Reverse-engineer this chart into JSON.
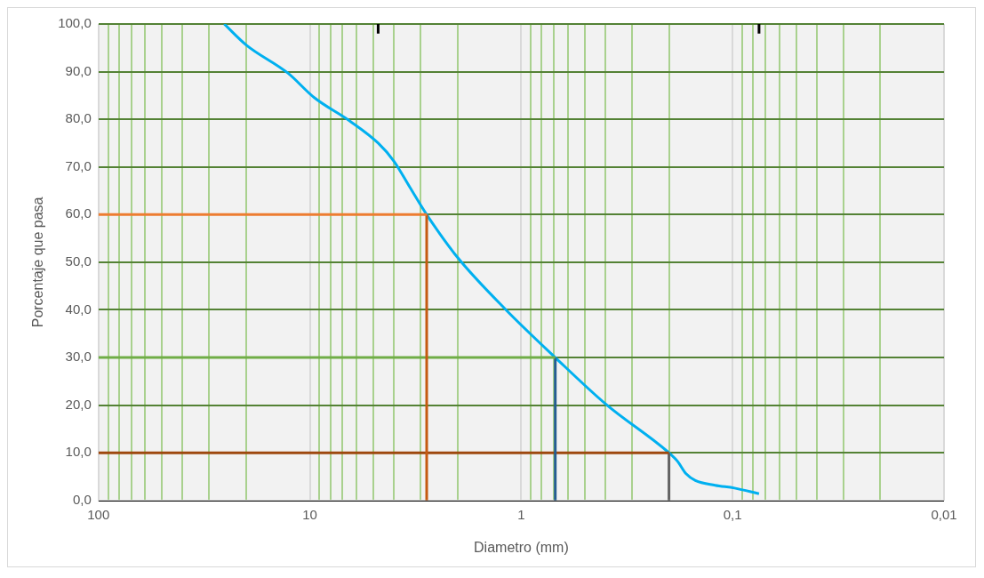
{
  "chart_data": {
    "type": "line",
    "xlabel": "Diametro (mm)",
    "ylabel": "Porcentaje que pasa",
    "xlim": [
      100,
      0.01
    ],
    "ylim": [
      0,
      100
    ],
    "log": "x",
    "grid": true,
    "legend": false,
    "marker": "none",
    "line_style": "solid",
    "xticks": [
      100,
      {
        "value": 90,
        "label": null
      },
      {
        "value": 80,
        "label": null
      },
      {
        "value": 70,
        "label": null
      },
      {
        "value": 60,
        "label": null
      },
      {
        "value": 50,
        "label": null
      },
      {
        "value": 40,
        "label": null
      },
      {
        "value": 30,
        "label": null
      },
      {
        "value": 20,
        "label": null
      },
      10,
      {
        "value": 9,
        "label": null
      },
      {
        "value": 8,
        "label": null
      },
      {
        "value": 7,
        "label": null
      },
      {
        "value": 6,
        "label": null
      },
      {
        "value": 5,
        "label": null
      },
      {
        "value": 4,
        "label": null
      },
      {
        "value": 3,
        "label": null
      },
      {
        "value": 2,
        "label": null
      },
      1,
      {
        "value": 0.9,
        "label": null
      },
      {
        "value": 0.8,
        "label": null
      },
      {
        "value": 0.7,
        "label": null
      },
      {
        "value": 0.6,
        "label": null
      },
      {
        "value": 0.5,
        "label": null
      },
      {
        "value": 0.4,
        "label": null
      },
      {
        "value": 0.3,
        "label": null
      },
      {
        "value": 0.2,
        "label": null
      },
      {
        "value": 0.1,
        "label": "0,1"
      },
      {
        "value": 0.09,
        "label": null
      },
      {
        "value": 0.08,
        "label": null
      },
      {
        "value": 0.07,
        "label": null
      },
      {
        "value": 0.06,
        "label": null
      },
      {
        "value": 0.05,
        "label": null
      },
      {
        "value": 0.04,
        "label": null
      },
      {
        "value": 0.03,
        "label": null
      },
      {
        "value": 0.02,
        "label": null
      },
      {
        "value": 0.01,
        "label": "0,01"
      }
    ],
    "yticks": [
      {
        "value": 0,
        "label": "0,0"
      },
      {
        "value": 10,
        "label": "10,0"
      },
      {
        "value": 20,
        "label": "20,0"
      },
      {
        "value": 30,
        "label": "30,0"
      },
      {
        "value": 40,
        "label": "40,0"
      },
      {
        "value": 50,
        "label": "50,0"
      },
      {
        "value": 60,
        "label": "60,0"
      },
      {
        "value": 70,
        "label": "70,0"
      },
      {
        "value": 80,
        "label": "80,0"
      },
      {
        "value": 90,
        "label": "90,0"
      },
      {
        "value": 100,
        "label": "100,0"
      }
    ],
    "series": [
      {
        "color": "#ed7d31",
        "x": [
          100,
          2.8
        ],
        "values": [
          60,
          60
        ]
      },
      {
        "color": "#c55a11",
        "x": [
          2.8,
          2.8
        ],
        "values": [
          60,
          0
        ]
      },
      {
        "color": "#70ad47",
        "x": [
          100,
          0.69
        ],
        "values": [
          30,
          30
        ]
      },
      {
        "color": "#255e91",
        "x": [
          0.69,
          0.69
        ],
        "values": [
          30,
          0
        ]
      },
      {
        "color": "#9e480e",
        "x": [
          100,
          0.2
        ],
        "values": [
          10,
          10
        ]
      },
      {
        "color": "#636363",
        "x": [
          0.2,
          0.2
        ],
        "values": [
          10,
          0
        ]
      },
      {
        "color": "#000000",
        "x": [
          4.75,
          4.75
        ],
        "values": [
          100,
          98
        ]
      },
      {
        "color": "#000000",
        "x": [
          0.075,
          0.075
        ],
        "values": [
          100,
          98
        ]
      },
      {
        "color": "#00b0f0",
        "x": [
          25.4,
          20,
          12.7,
          9.5,
          6.5,
          4.75,
          4.0,
          3.37,
          2.8,
          2.0,
          1.18,
          0.69,
          0.395,
          0.2,
          0.182,
          0.166,
          0.15,
          0.121,
          0.098,
          0.075
        ],
        "values": [
          100,
          95.6,
          89.7,
          84.5,
          79.7,
          75,
          71.2,
          65.8,
          60,
          51,
          40,
          30,
          20.1,
          10,
          8.2,
          5.6,
          4.2,
          3.2,
          2.6,
          1.4
        ]
      }
    ]
  }
}
